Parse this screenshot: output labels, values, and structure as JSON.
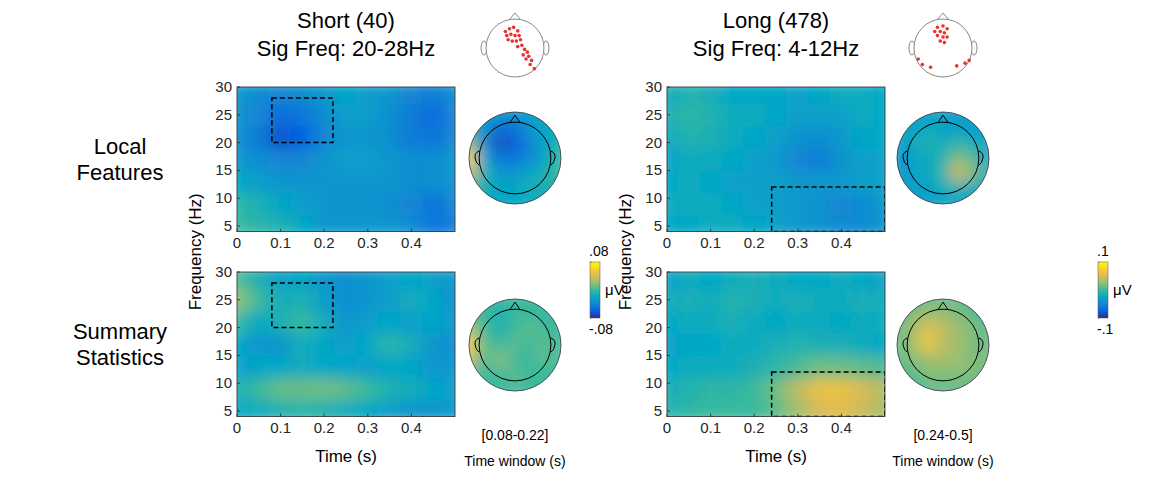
{
  "chart_data": [
    {
      "type": "heatmap",
      "xlim": [
        0,
        0.5
      ],
      "ylim": [
        4,
        30
      ],
      "xticks": [
        0,
        0.1,
        0.2,
        0.3,
        0.4
      ],
      "yticks": [
        5,
        10,
        15,
        20,
        25,
        30
      ],
      "x": [
        0,
        0.05,
        0.1,
        0.15,
        0.2,
        0.25,
        0.3,
        0.35,
        0.4,
        0.45,
        0.5
      ],
      "y": [
        5,
        9,
        13,
        17,
        21,
        25,
        29
      ],
      "color_range": [
        -0.08,
        0.08
      ],
      "sig_box": {
        "x": [
          0.08,
          0.22
        ],
        "y": [
          20,
          28
        ]
      },
      "values": [
        [
          0.0,
          -0.005,
          -0.01,
          -0.02,
          -0.03,
          -0.03,
          -0.03,
          -0.03,
          -0.035,
          -0.05,
          -0.045
        ],
        [
          -0.005,
          -0.01,
          -0.02,
          -0.025,
          -0.03,
          -0.03,
          -0.03,
          -0.035,
          -0.04,
          -0.05,
          -0.04
        ],
        [
          -0.02,
          -0.025,
          -0.03,
          -0.03,
          -0.03,
          -0.03,
          -0.03,
          -0.03,
          -0.035,
          -0.035,
          -0.03
        ],
        [
          -0.03,
          -0.035,
          -0.04,
          -0.04,
          -0.03,
          -0.025,
          -0.025,
          -0.03,
          -0.035,
          -0.035,
          -0.03
        ],
        [
          -0.035,
          -0.045,
          -0.065,
          -0.06,
          -0.04,
          -0.03,
          -0.03,
          -0.035,
          -0.045,
          -0.05,
          -0.04
        ],
        [
          -0.03,
          -0.04,
          -0.055,
          -0.05,
          -0.035,
          -0.025,
          -0.025,
          -0.035,
          -0.045,
          -0.055,
          -0.04
        ],
        [
          -0.03,
          -0.035,
          -0.04,
          -0.035,
          -0.03,
          -0.02,
          -0.025,
          -0.03,
          -0.04,
          -0.045,
          -0.035
        ]
      ],
      "topomap": {
        "x": [
          -1,
          -0.67,
          -0.33,
          0,
          0.33,
          0.67,
          1
        ],
        "y": [
          1,
          0.67,
          0.33,
          0,
          -0.33,
          -0.67,
          -1
        ],
        "values": [
          [
            -0.02,
            -0.02,
            -0.03,
            -0.03,
            -0.02,
            -0.02,
            -0.02
          ],
          [
            -0.01,
            -0.03,
            -0.05,
            -0.05,
            -0.03,
            -0.02,
            -0.01
          ],
          [
            0.02,
            -0.04,
            -0.07,
            -0.06,
            -0.04,
            -0.02,
            -0.01
          ],
          [
            0.06,
            -0.02,
            -0.05,
            -0.05,
            -0.04,
            -0.02,
            0.0
          ],
          [
            0.04,
            -0.01,
            -0.03,
            -0.03,
            -0.02,
            -0.01,
            0.0
          ],
          [
            0.0,
            -0.01,
            -0.02,
            -0.02,
            -0.01,
            -0.01,
            -0.01
          ],
          [
            -0.01,
            -0.02,
            -0.02,
            -0.02,
            -0.02,
            -0.02,
            -0.02
          ]
        ]
      }
    },
    {
      "type": "heatmap",
      "x_label": "Time (s)",
      "xlim": [
        0,
        0.5
      ],
      "ylim": [
        4,
        30
      ],
      "xticks": [
        0,
        0.1,
        0.2,
        0.3,
        0.4
      ],
      "yticks": [
        5,
        10,
        15,
        20,
        25,
        30
      ],
      "x": [
        0,
        0.05,
        0.1,
        0.15,
        0.2,
        0.25,
        0.3,
        0.35,
        0.4,
        0.45,
        0.5
      ],
      "y": [
        5,
        9,
        13,
        17,
        21,
        25,
        29
      ],
      "color_range": [
        -0.08,
        0.08
      ],
      "sig_box": {
        "x": [
          0.08,
          0.22
        ],
        "y": [
          20,
          28
        ]
      },
      "values": [
        [
          -0.02,
          -0.015,
          -0.01,
          -0.005,
          -0.01,
          -0.015,
          -0.02,
          -0.025,
          -0.03,
          -0.03,
          -0.03
        ],
        [
          -0.01,
          0.0,
          0.01,
          0.01,
          0.012,
          0.008,
          0.0,
          -0.01,
          -0.015,
          -0.02,
          -0.025
        ],
        [
          -0.025,
          -0.02,
          -0.02,
          -0.015,
          -0.02,
          -0.02,
          -0.025,
          -0.02,
          -0.02,
          -0.03,
          -0.03
        ],
        [
          -0.02,
          -0.03,
          -0.03,
          -0.015,
          -0.02,
          -0.025,
          -0.02,
          -0.005,
          -0.015,
          -0.03,
          -0.035
        ],
        [
          0.0,
          -0.02,
          -0.01,
          0.0,
          -0.015,
          -0.03,
          -0.025,
          -0.02,
          -0.025,
          -0.02,
          -0.03
        ],
        [
          0.02,
          0.0,
          -0.015,
          -0.01,
          -0.025,
          -0.035,
          -0.03,
          -0.025,
          -0.015,
          -0.02,
          -0.035
        ],
        [
          0.005,
          -0.01,
          -0.025,
          -0.02,
          -0.03,
          -0.035,
          -0.03,
          -0.025,
          -0.02,
          -0.025,
          -0.03
        ]
      ],
      "topomap": {
        "x": [
          -1,
          -0.67,
          -0.33,
          0,
          0.33,
          0.67,
          1
        ],
        "y": [
          1,
          0.67,
          0.33,
          0,
          -0.33,
          -0.67,
          -1
        ],
        "values": [
          [
            0.0,
            0.0,
            0.0,
            0.0,
            0.0,
            0.0,
            0.0
          ],
          [
            0.01,
            0.0,
            -0.01,
            0.0,
            0.0,
            0.0,
            0.0
          ],
          [
            0.03,
            0.0,
            -0.01,
            0.0,
            0.01,
            0.0,
            0.0
          ],
          [
            0.06,
            0.01,
            0.0,
            0.01,
            0.0,
            0.01,
            0.0
          ],
          [
            0.04,
            0.0,
            0.02,
            0.0,
            0.0,
            0.01,
            0.0
          ],
          [
            0.01,
            0.0,
            0.0,
            0.01,
            0.0,
            0.0,
            0.0
          ],
          [
            0.0,
            0.0,
            0.0,
            0.0,
            0.0,
            0.0,
            0.0
          ]
        ]
      }
    },
    {
      "type": "heatmap",
      "xlim": [
        0,
        0.5
      ],
      "ylim": [
        4,
        30
      ],
      "xticks": [
        0,
        0.1,
        0.2,
        0.3,
        0.4
      ],
      "yticks": [
        5,
        10,
        15,
        20,
        25,
        30
      ],
      "x": [
        0,
        0.05,
        0.1,
        0.15,
        0.2,
        0.25,
        0.3,
        0.35,
        0.4,
        0.45,
        0.5
      ],
      "y": [
        5,
        9,
        13,
        17,
        21,
        25,
        29
      ],
      "color_range": [
        -0.1,
        0.1
      ],
      "sig_box": {
        "x": [
          0.24,
          0.5
        ],
        "y": [
          4,
          12
        ]
      },
      "values": [
        [
          -0.025,
          -0.025,
          -0.02,
          -0.02,
          -0.025,
          -0.03,
          -0.035,
          -0.04,
          -0.045,
          -0.045,
          -0.04
        ],
        [
          -0.02,
          -0.02,
          -0.02,
          -0.025,
          -0.03,
          -0.03,
          -0.035,
          -0.04,
          -0.05,
          -0.045,
          -0.035
        ],
        [
          -0.025,
          -0.02,
          -0.025,
          -0.03,
          -0.03,
          -0.03,
          -0.035,
          -0.035,
          -0.035,
          -0.03,
          -0.03
        ],
        [
          -0.03,
          -0.02,
          -0.02,
          -0.025,
          -0.03,
          -0.035,
          -0.05,
          -0.055,
          -0.04,
          -0.03,
          -0.03
        ],
        [
          -0.02,
          -0.01,
          -0.015,
          -0.02,
          -0.025,
          -0.03,
          -0.04,
          -0.045,
          -0.035,
          -0.025,
          -0.025
        ],
        [
          -0.015,
          -0.005,
          -0.01,
          -0.02,
          -0.02,
          -0.025,
          -0.03,
          -0.03,
          -0.03,
          -0.02,
          -0.025
        ],
        [
          -0.02,
          -0.01,
          -0.015,
          -0.025,
          -0.025,
          -0.025,
          -0.03,
          -0.025,
          -0.02,
          -0.02,
          -0.025
        ]
      ],
      "topomap": {
        "x": [
          -1,
          -0.67,
          -0.33,
          0,
          0.33,
          0.67,
          1
        ],
        "y": [
          1,
          0.67,
          0.33,
          0,
          -0.33,
          -0.67,
          -1
        ],
        "values": [
          [
            -0.03,
            -0.03,
            -0.03,
            -0.03,
            -0.03,
            -0.03,
            -0.03
          ],
          [
            -0.03,
            -0.03,
            -0.02,
            -0.03,
            -0.03,
            -0.03,
            -0.03
          ],
          [
            -0.03,
            -0.02,
            -0.01,
            -0.02,
            -0.01,
            -0.02,
            -0.03
          ],
          [
            -0.04,
            -0.03,
            -0.02,
            -0.01,
            0.02,
            0.01,
            -0.03
          ],
          [
            -0.04,
            -0.03,
            -0.02,
            -0.01,
            0.05,
            0.02,
            -0.02
          ],
          [
            -0.03,
            -0.03,
            -0.03,
            -0.02,
            -0.01,
            -0.02,
            -0.03
          ],
          [
            -0.03,
            -0.03,
            -0.03,
            -0.03,
            -0.03,
            -0.03,
            -0.03
          ]
        ]
      }
    },
    {
      "type": "heatmap",
      "x_label": "Time (s)",
      "xlim": [
        0,
        0.5
      ],
      "ylim": [
        4,
        30
      ],
      "xticks": [
        0,
        0.1,
        0.2,
        0.3,
        0.4
      ],
      "yticks": [
        5,
        10,
        15,
        20,
        25,
        30
      ],
      "x": [
        0,
        0.05,
        0.1,
        0.15,
        0.2,
        0.25,
        0.3,
        0.35,
        0.4,
        0.45,
        0.5
      ],
      "y": [
        5,
        9,
        13,
        17,
        21,
        25,
        29
      ],
      "color_range": [
        -0.1,
        0.1
      ],
      "sig_box": {
        "x": [
          0.24,
          0.5
        ],
        "y": [
          4,
          12
        ]
      },
      "values": [
        [
          -0.01,
          -0.005,
          0.0,
          0.0,
          0.0,
          0.01,
          0.03,
          0.05,
          0.055,
          0.045,
          0.03
        ],
        [
          -0.015,
          -0.01,
          -0.005,
          -0.005,
          0.0,
          0.015,
          0.04,
          0.06,
          0.06,
          0.05,
          0.035
        ],
        [
          -0.025,
          -0.02,
          -0.02,
          -0.02,
          -0.015,
          -0.005,
          0.005,
          0.015,
          0.015,
          0.01,
          0.005
        ],
        [
          -0.03,
          -0.025,
          -0.025,
          -0.02,
          -0.02,
          -0.015,
          -0.01,
          -0.015,
          -0.015,
          -0.02,
          -0.025
        ],
        [
          -0.025,
          -0.02,
          -0.02,
          -0.015,
          -0.02,
          -0.025,
          -0.02,
          -0.02,
          -0.025,
          -0.02,
          -0.02
        ],
        [
          -0.02,
          -0.015,
          -0.02,
          -0.01,
          -0.015,
          -0.02,
          -0.015,
          -0.02,
          -0.02,
          -0.015,
          -0.02
        ],
        [
          -0.03,
          -0.02,
          -0.025,
          -0.02,
          -0.015,
          -0.02,
          -0.025,
          -0.025,
          -0.02,
          -0.025,
          -0.03
        ]
      ],
      "topomap": {
        "x": [
          -1,
          -0.67,
          -0.33,
          0,
          0.33,
          0.67,
          1
        ],
        "y": [
          1,
          0.67,
          0.33,
          0,
          -0.33,
          -0.67,
          -1
        ],
        "values": [
          [
            0.0,
            0.01,
            0.01,
            0.01,
            0.01,
            0.0,
            0.0
          ],
          [
            0.01,
            0.02,
            0.03,
            0.03,
            0.02,
            0.01,
            0.0
          ],
          [
            0.01,
            0.03,
            0.06,
            0.04,
            0.03,
            0.02,
            0.01
          ],
          [
            0.01,
            0.03,
            0.07,
            0.04,
            0.03,
            0.02,
            0.01
          ],
          [
            0.01,
            0.02,
            0.03,
            0.03,
            0.03,
            0.02,
            0.02
          ],
          [
            0.0,
            0.01,
            0.02,
            0.02,
            0.02,
            0.02,
            0.01
          ],
          [
            0.0,
            0.0,
            0.01,
            0.01,
            0.01,
            0.01,
            0.0
          ]
        ]
      }
    }
  ],
  "columns": [
    {
      "title": "Short (40)",
      "subtitle": "Sig Freq: 20-28Hz",
      "y_label": "Frequency (Hz)",
      "time_window_label": "[0.08-0.22]",
      "time_window_title": "Time window (s)",
      "colorbar": {
        "lim": [
          -0.08,
          0.08
        ],
        "ticks": [
          {
            "value": 0.08,
            "label": ".08"
          },
          {
            "value": -0.08,
            "label": "-.08"
          }
        ],
        "label": "μV"
      },
      "sig_electrodes": [
        [
          -0.35,
          0.6
        ],
        [
          -0.2,
          0.7
        ],
        [
          -0.05,
          0.75
        ],
        [
          0.1,
          0.62
        ],
        [
          -0.3,
          0.45
        ],
        [
          -0.15,
          0.5
        ],
        [
          0.0,
          0.45
        ],
        [
          0.15,
          0.45
        ],
        [
          -0.25,
          0.3
        ],
        [
          -0.1,
          0.25
        ],
        [
          0.05,
          0.25
        ],
        [
          0.2,
          0.3
        ],
        [
          0.1,
          0.05
        ],
        [
          0.25,
          0.1
        ],
        [
          0.35,
          -0.05
        ],
        [
          0.45,
          -0.15
        ],
        [
          0.3,
          -0.25
        ],
        [
          0.5,
          -0.3
        ],
        [
          0.6,
          -0.45
        ],
        [
          0.4,
          -0.4
        ],
        [
          0.55,
          -0.6
        ],
        [
          0.7,
          -0.75
        ]
      ]
    },
    {
      "title": "Long (478)",
      "subtitle": "Sig Freq: 4-12Hz",
      "y_label": "Frequency (Hz)",
      "time_window_label": "[0.24-0.5]",
      "time_window_title": "Time window (s)",
      "colorbar": {
        "lim": [
          -0.1,
          0.1
        ],
        "ticks": [
          {
            "value": 0.1,
            "label": ".1"
          },
          {
            "value": -0.1,
            "label": "-.1"
          }
        ],
        "label": "μV"
      },
      "sig_electrodes": [
        [
          -0.2,
          0.75
        ],
        [
          0.0,
          0.8
        ],
        [
          0.15,
          0.7
        ],
        [
          -0.3,
          0.6
        ],
        [
          -0.1,
          0.6
        ],
        [
          0.05,
          0.55
        ],
        [
          -0.2,
          0.45
        ],
        [
          0.0,
          0.4
        ],
        [
          0.15,
          0.4
        ],
        [
          -0.1,
          0.25
        ],
        [
          0.05,
          0.2
        ],
        [
          -0.9,
          -0.4
        ],
        [
          -0.75,
          -0.6
        ],
        [
          -0.45,
          -0.7
        ],
        [
          0.5,
          -0.65
        ],
        [
          0.8,
          -0.55
        ],
        [
          0.95,
          -0.45
        ]
      ]
    }
  ],
  "rows": [
    "Local Features",
    "Summary Statistics"
  ]
}
